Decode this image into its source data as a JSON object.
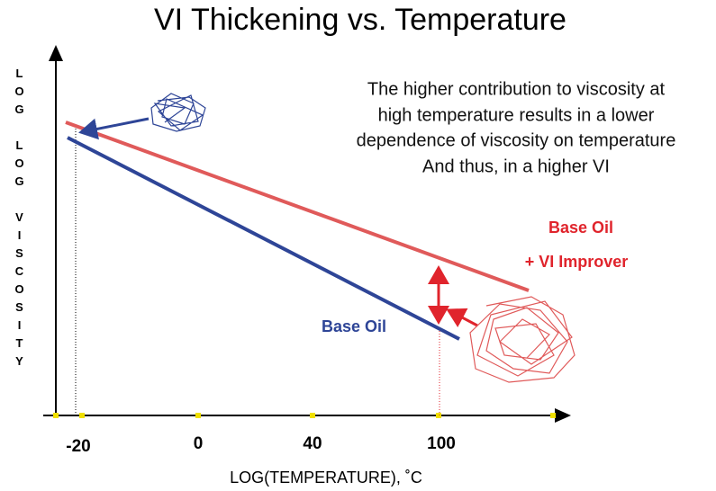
{
  "title": "VI Thickening vs. Temperature",
  "annotation": [
    "The higher contribution to viscosity at",
    "high temperature results in a lower",
    "dependence of viscosity on temperature",
    "And thus, in a higher VI"
  ],
  "labels": {
    "improved_line": [
      "Base Oil",
      "+ VI Improver"
    ],
    "base_line": "Base Oil"
  },
  "x_axis": {
    "label": "LOG(TEMPERATURE),  ˚C",
    "ticks": [
      "-20",
      "0",
      "40",
      "100"
    ]
  },
  "y_axis": {
    "label": "LOG LOG VISCOSITY"
  }
}
